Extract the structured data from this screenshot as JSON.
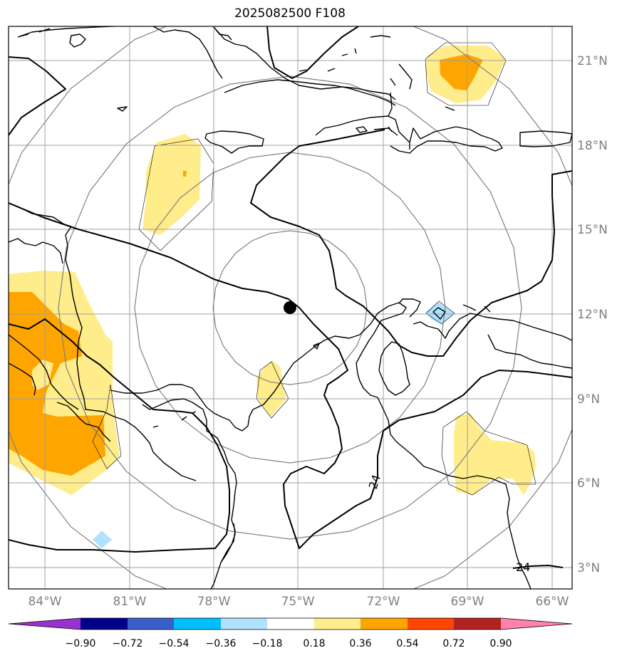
{
  "title": "2025082500 F108",
  "axes": {
    "lon_labels": [
      "84°W",
      "81°W",
      "78°W",
      "75°W",
      "72°W",
      "69°W",
      "66°W"
    ],
    "lat_labels": [
      "21°N",
      "18°N",
      "15°N",
      "12°N",
      "9°N",
      "6°N",
      "3°N"
    ],
    "lon_values": [
      -84,
      -81,
      -78,
      -75,
      -72,
      -69,
      -66
    ],
    "lat_values": [
      21,
      18,
      15,
      12,
      9,
      6,
      3
    ]
  },
  "colorbar": {
    "tick_labels": [
      "−0.90",
      "−0.72",
      "−0.54",
      "−0.36",
      "−0.18",
      "0.18",
      "0.36",
      "0.54",
      "0.72",
      "0.90"
    ],
    "colors": [
      "#9932cc",
      "#00008b",
      "#3a5fcd",
      "#00bfff",
      "#b0e2ff",
      "#ffffff",
      "#ffec8b",
      "#ffa500",
      "#ff4500",
      "#b22222",
      "#ff82ab"
    ]
  },
  "contour_labels": [
    "24",
    "24"
  ],
  "center_marker": {
    "lon": -75.3,
    "lat": 12.2
  },
  "colors": {
    "land_outline": "#000000",
    "grid": "#a0a0a0",
    "range_rings": "#808080",
    "frame": "#000000"
  }
}
